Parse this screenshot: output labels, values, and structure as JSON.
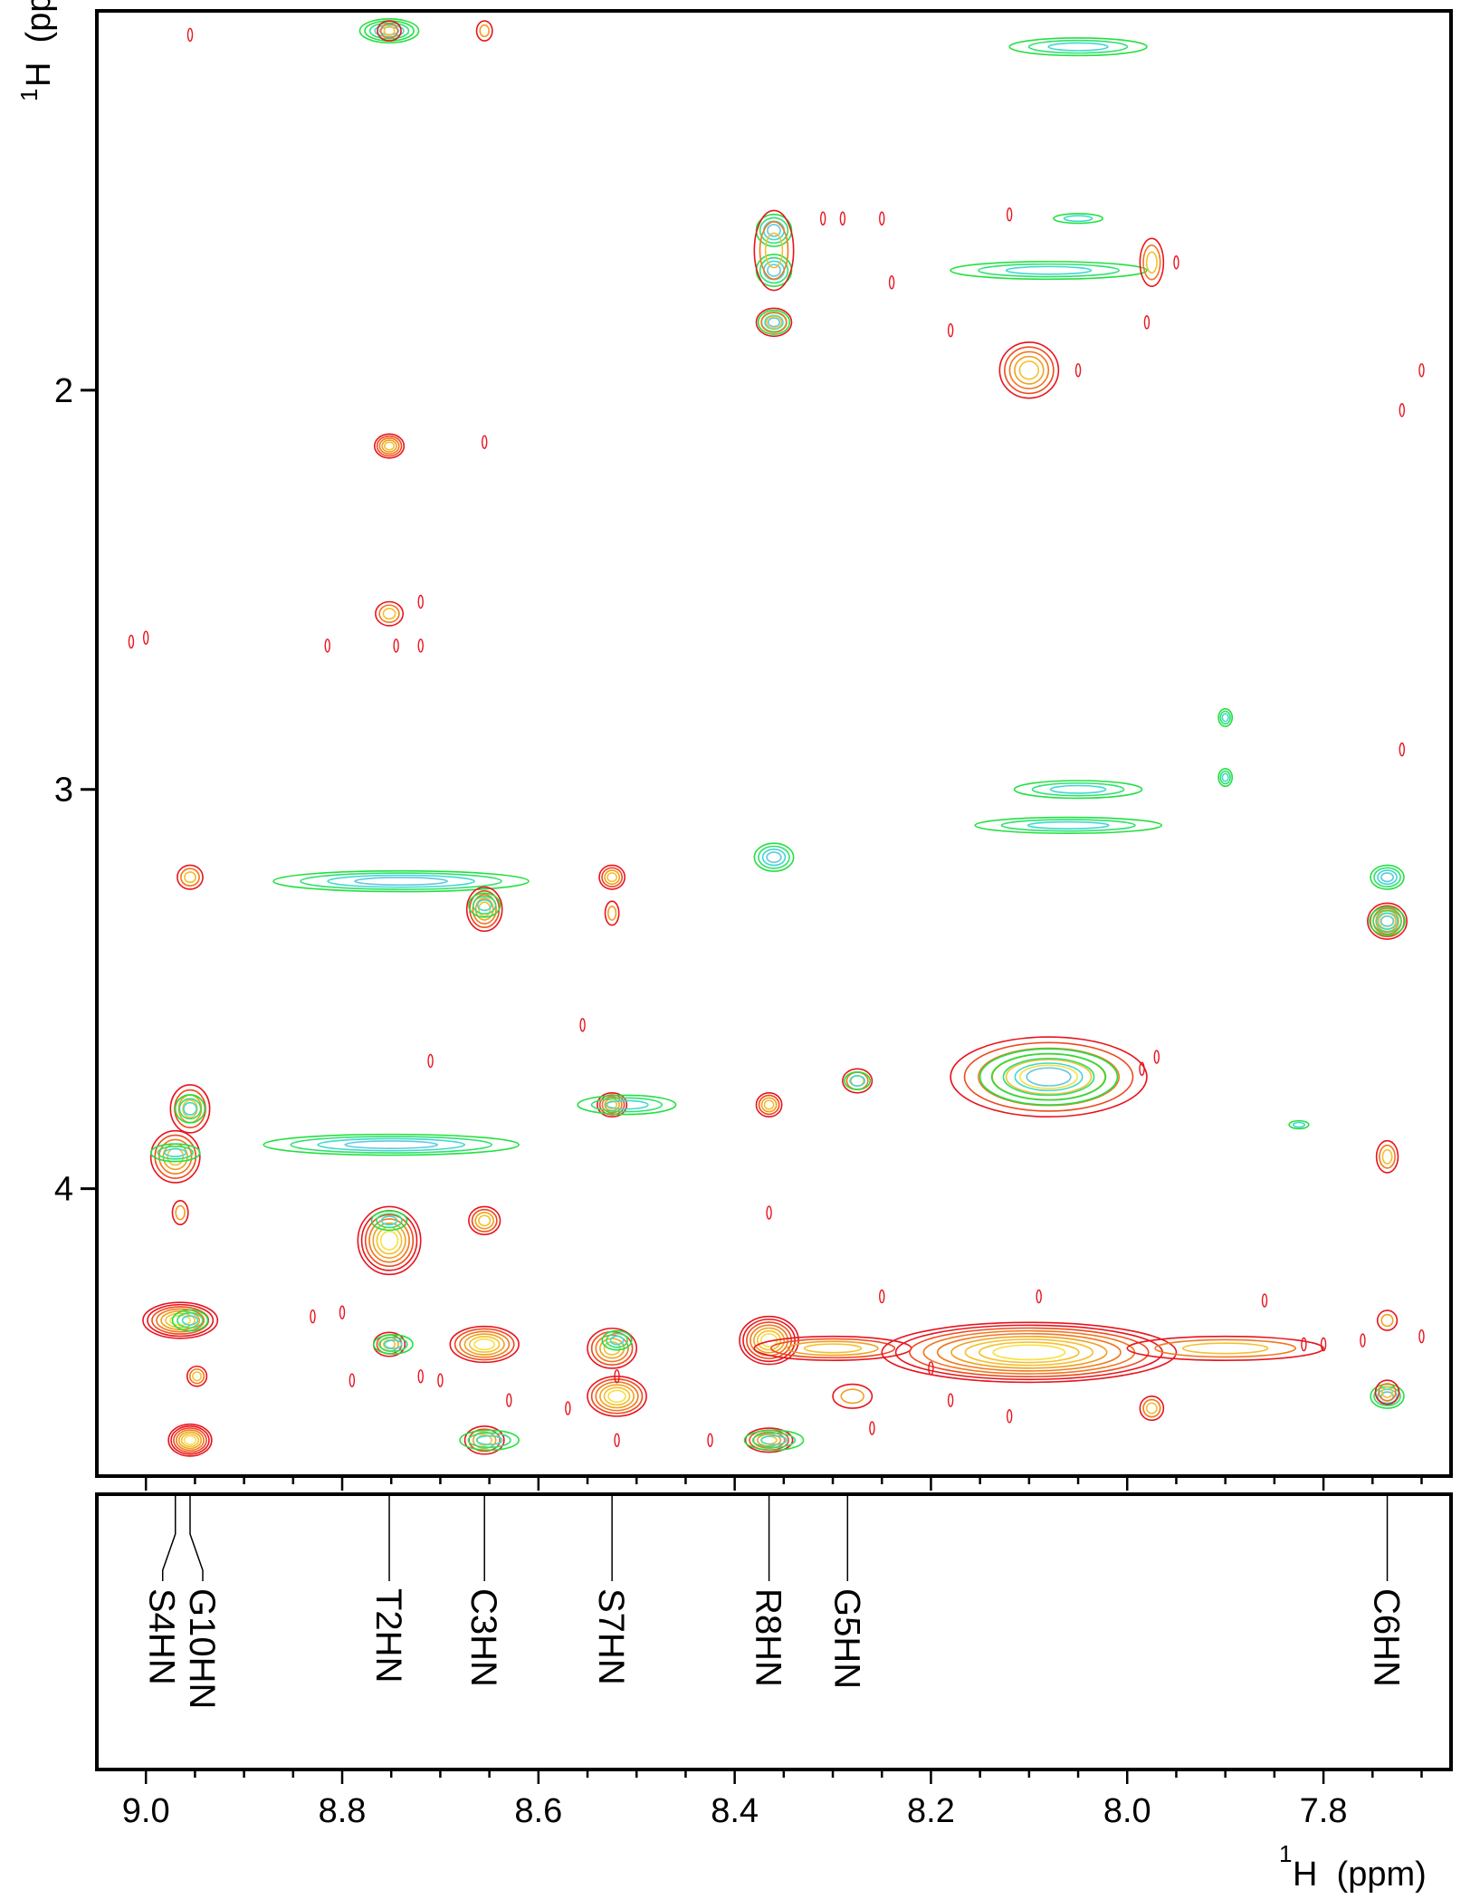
{
  "chart_data": {
    "type": "contour",
    "title": "",
    "x_axis": {
      "label_sup": "1",
      "label_main": "H  (ppm)",
      "range": [
        9.05,
        7.67
      ],
      "major_ticks": [
        9.0,
        8.8,
        8.6,
        8.4,
        8.2,
        8.0,
        7.8
      ],
      "tick_labels": [
        "9.0",
        "8.8",
        "8.6",
        "8.4",
        "8.2",
        "8.0",
        "7.8"
      ],
      "minor_step": 0.05
    },
    "y_axis": {
      "label_sup": "1",
      "label_main": "H  (ppm)",
      "range": [
        1.05,
        4.72
      ],
      "major_ticks": [
        2,
        3,
        4
      ],
      "tick_labels": [
        "2",
        "3",
        "4"
      ]
    },
    "colors": {
      "red": "#e8141e",
      "orange": "#f0a020",
      "yellow": "#f8e040",
      "green": "#22e040",
      "cyan": "#40d8d0",
      "axis": "#000000"
    },
    "assignments": [
      {
        "label": "S4HN",
        "x": 8.97
      },
      {
        "label": "G10HN",
        "x": 8.955
      },
      {
        "label": "T2HN",
        "x": 8.752
      },
      {
        "label": "C3HN",
        "x": 8.655
      },
      {
        "label": "S7HN",
        "x": 8.525
      },
      {
        "label": "R8HN",
        "x": 8.365
      },
      {
        "label": "G5HN",
        "x": 8.285
      },
      {
        "label": "C6HN",
        "x": 7.735
      }
    ],
    "peaks": [
      {
        "x": 8.752,
        "y": 1.1,
        "wx": 0.03,
        "wy": 0.03,
        "n": 5,
        "c": "green"
      },
      {
        "x": 8.752,
        "y": 1.1,
        "wx": 0.012,
        "wy": 0.025,
        "n": 3,
        "c": "red"
      },
      {
        "x": 8.655,
        "y": 1.1,
        "wx": 0.008,
        "wy": 0.025,
        "n": 2,
        "c": "red"
      },
      {
        "x": 8.05,
        "y": 1.14,
        "wx": 0.07,
        "wy": 0.022,
        "n": 3,
        "c": "green"
      },
      {
        "x": 8.36,
        "y": 1.6,
        "wx": 0.018,
        "wy": 0.04,
        "n": 4,
        "c": "green"
      },
      {
        "x": 8.36,
        "y": 1.7,
        "wx": 0.018,
        "wy": 0.04,
        "n": 4,
        "c": "green"
      },
      {
        "x": 8.36,
        "y": 1.65,
        "wx": 0.02,
        "wy": 0.1,
        "n": 3,
        "c": "red"
      },
      {
        "x": 8.36,
        "y": 1.83,
        "wx": 0.016,
        "wy": 0.03,
        "n": 4,
        "c": "green"
      },
      {
        "x": 8.36,
        "y": 1.83,
        "wx": 0.018,
        "wy": 0.035,
        "n": 3,
        "c": "red"
      },
      {
        "x": 8.05,
        "y": 1.57,
        "wx": 0.025,
        "wy": 0.012,
        "n": 2,
        "c": "green"
      },
      {
        "x": 8.08,
        "y": 1.7,
        "wx": 0.1,
        "wy": 0.022,
        "n": 3,
        "c": "green"
      },
      {
        "x": 7.975,
        "y": 1.68,
        "wx": 0.012,
        "wy": 0.06,
        "n": 3,
        "c": "red"
      },
      {
        "x": 8.1,
        "y": 1.95,
        "wx": 0.03,
        "wy": 0.07,
        "n": 5,
        "c": "red"
      },
      {
        "x": 8.752,
        "y": 2.14,
        "wx": 0.015,
        "wy": 0.03,
        "n": 5,
        "c": "red"
      },
      {
        "x": 8.752,
        "y": 2.56,
        "wx": 0.014,
        "wy": 0.03,
        "n": 3,
        "c": "red"
      },
      {
        "x": 7.9,
        "y": 2.82,
        "wx": 0.007,
        "wy": 0.022,
        "n": 3,
        "c": "green"
      },
      {
        "x": 7.9,
        "y": 2.97,
        "wx": 0.007,
        "wy": 0.022,
        "n": 3,
        "c": "green"
      },
      {
        "x": 8.05,
        "y": 3.0,
        "wx": 0.065,
        "wy": 0.022,
        "n": 3,
        "c": "green"
      },
      {
        "x": 8.06,
        "y": 3.09,
        "wx": 0.095,
        "wy": 0.02,
        "n": 3,
        "c": "green"
      },
      {
        "x": 8.36,
        "y": 3.17,
        "wx": 0.02,
        "wy": 0.035,
        "n": 4,
        "c": "green"
      },
      {
        "x": 8.955,
        "y": 3.22,
        "wx": 0.013,
        "wy": 0.03,
        "n": 3,
        "c": "red"
      },
      {
        "x": 8.525,
        "y": 3.22,
        "wx": 0.013,
        "wy": 0.03,
        "n": 4,
        "c": "red"
      },
      {
        "x": 8.525,
        "y": 3.31,
        "wx": 0.007,
        "wy": 0.03,
        "n": 2,
        "c": "red"
      },
      {
        "x": 8.74,
        "y": 3.23,
        "wx": 0.13,
        "wy": 0.026,
        "n": 4,
        "c": "green"
      },
      {
        "x": 8.655,
        "y": 3.3,
        "wx": 0.018,
        "wy": 0.055,
        "n": 5,
        "c": "red"
      },
      {
        "x": 8.655,
        "y": 3.29,
        "wx": 0.016,
        "wy": 0.03,
        "n": 3,
        "c": "green"
      },
      {
        "x": 7.735,
        "y": 3.22,
        "wx": 0.017,
        "wy": 0.03,
        "n": 4,
        "c": "green"
      },
      {
        "x": 7.735,
        "y": 3.33,
        "wx": 0.02,
        "wy": 0.045,
        "n": 6,
        "c": "red"
      },
      {
        "x": 7.735,
        "y": 3.33,
        "wx": 0.018,
        "wy": 0.035,
        "n": 4,
        "c": "green"
      },
      {
        "x": 8.08,
        "y": 3.72,
        "wx": 0.1,
        "wy": 0.1,
        "n": 6,
        "c": "red"
      },
      {
        "x": 8.08,
        "y": 3.72,
        "wx": 0.07,
        "wy": 0.07,
        "n": 5,
        "c": "green"
      },
      {
        "x": 8.275,
        "y": 3.73,
        "wx": 0.015,
        "wy": 0.03,
        "n": 3,
        "c": "red"
      },
      {
        "x": 8.275,
        "y": 3.73,
        "wx": 0.013,
        "wy": 0.022,
        "n": 2,
        "c": "green"
      },
      {
        "x": 8.955,
        "y": 3.8,
        "wx": 0.02,
        "wy": 0.06,
        "n": 4,
        "c": "red"
      },
      {
        "x": 8.955,
        "y": 3.8,
        "wx": 0.015,
        "wy": 0.035,
        "n": 3,
        "c": "green"
      },
      {
        "x": 8.97,
        "y": 3.92,
        "wx": 0.025,
        "wy": 0.065,
        "n": 5,
        "c": "red"
      },
      {
        "x": 8.97,
        "y": 3.91,
        "wx": 0.025,
        "wy": 0.022,
        "n": 3,
        "c": "green"
      },
      {
        "x": 8.525,
        "y": 3.79,
        "wx": 0.015,
        "wy": 0.03,
        "n": 5,
        "c": "red"
      },
      {
        "x": 8.51,
        "y": 3.79,
        "wx": 0.05,
        "wy": 0.024,
        "n": 3,
        "c": "green"
      },
      {
        "x": 8.365,
        "y": 3.79,
        "wx": 0.013,
        "wy": 0.03,
        "n": 4,
        "c": "red"
      },
      {
        "x": 8.75,
        "y": 3.89,
        "wx": 0.13,
        "wy": 0.026,
        "n": 4,
        "c": "green"
      },
      {
        "x": 7.735,
        "y": 3.92,
        "wx": 0.011,
        "wy": 0.04,
        "n": 3,
        "c": "red"
      },
      {
        "x": 7.825,
        "y": 3.84,
        "wx": 0.01,
        "wy": 0.01,
        "n": 2,
        "c": "green"
      },
      {
        "x": 8.965,
        "y": 4.06,
        "wx": 0.008,
        "wy": 0.03,
        "n": 2,
        "c": "red"
      },
      {
        "x": 8.752,
        "y": 4.13,
        "wx": 0.032,
        "wy": 0.085,
        "n": 7,
        "c": "red"
      },
      {
        "x": 8.752,
        "y": 4.08,
        "wx": 0.018,
        "wy": 0.024,
        "n": 3,
        "c": "green"
      },
      {
        "x": 8.655,
        "y": 4.08,
        "wx": 0.016,
        "wy": 0.035,
        "n": 4,
        "c": "red"
      },
      {
        "x": 8.965,
        "y": 4.33,
        "wx": 0.038,
        "wy": 0.045,
        "n": 7,
        "c": "red"
      },
      {
        "x": 8.955,
        "y": 4.33,
        "wx": 0.018,
        "wy": 0.026,
        "n": 3,
        "c": "green"
      },
      {
        "x": 8.948,
        "y": 4.47,
        "wx": 0.01,
        "wy": 0.025,
        "n": 3,
        "c": "red"
      },
      {
        "x": 8.752,
        "y": 4.39,
        "wx": 0.016,
        "wy": 0.03,
        "n": 4,
        "c": "red"
      },
      {
        "x": 8.748,
        "y": 4.39,
        "wx": 0.02,
        "wy": 0.024,
        "n": 3,
        "c": "green"
      },
      {
        "x": 8.655,
        "y": 4.39,
        "wx": 0.035,
        "wy": 0.045,
        "n": 6,
        "c": "red"
      },
      {
        "x": 8.525,
        "y": 4.4,
        "wx": 0.025,
        "wy": 0.05,
        "n": 5,
        "c": "red"
      },
      {
        "x": 8.52,
        "y": 4.38,
        "wx": 0.015,
        "wy": 0.024,
        "n": 3,
        "c": "green"
      },
      {
        "x": 8.52,
        "y": 4.52,
        "wx": 0.03,
        "wy": 0.05,
        "n": 6,
        "c": "red"
      },
      {
        "x": 8.365,
        "y": 4.38,
        "wx": 0.03,
        "wy": 0.06,
        "n": 7,
        "c": "red"
      },
      {
        "x": 8.3,
        "y": 4.4,
        "wx": 0.08,
        "wy": 0.03,
        "n": 4,
        "c": "red"
      },
      {
        "x": 8.1,
        "y": 4.41,
        "wx": 0.15,
        "wy": 0.075,
        "n": 9,
        "c": "red"
      },
      {
        "x": 7.9,
        "y": 4.4,
        "wx": 0.1,
        "wy": 0.03,
        "n": 3,
        "c": "red"
      },
      {
        "x": 8.28,
        "y": 4.52,
        "wx": 0.02,
        "wy": 0.03,
        "n": 2,
        "c": "red"
      },
      {
        "x": 7.975,
        "y": 4.55,
        "wx": 0.012,
        "wy": 0.03,
        "n": 3,
        "c": "red"
      },
      {
        "x": 7.735,
        "y": 4.52,
        "wx": 0.017,
        "wy": 0.03,
        "n": 4,
        "c": "green"
      },
      {
        "x": 7.735,
        "y": 4.51,
        "wx": 0.012,
        "wy": 0.03,
        "n": 3,
        "c": "red"
      },
      {
        "x": 7.735,
        "y": 4.33,
        "wx": 0.01,
        "wy": 0.025,
        "n": 2,
        "c": "red"
      },
      {
        "x": 8.955,
        "y": 4.63,
        "wx": 0.022,
        "wy": 0.04,
        "n": 7,
        "c": "red"
      },
      {
        "x": 8.655,
        "y": 4.63,
        "wx": 0.02,
        "wy": 0.035,
        "n": 4,
        "c": "red"
      },
      {
        "x": 8.65,
        "y": 4.63,
        "wx": 0.03,
        "wy": 0.025,
        "n": 3,
        "c": "green"
      },
      {
        "x": 8.365,
        "y": 4.63,
        "wx": 0.024,
        "wy": 0.03,
        "n": 5,
        "c": "red"
      },
      {
        "x": 8.36,
        "y": 4.63,
        "wx": 0.03,
        "wy": 0.025,
        "n": 3,
        "c": "green"
      }
    ],
    "specks": [
      [
        8.955,
        1.11
      ],
      [
        9.015,
        2.63
      ],
      [
        9.0,
        2.62
      ],
      [
        8.815,
        2.64
      ],
      [
        8.745,
        2.64
      ],
      [
        8.72,
        2.64
      ],
      [
        8.72,
        2.53
      ],
      [
        8.655,
        2.13
      ],
      [
        8.18,
        1.85
      ],
      [
        7.98,
        1.83
      ],
      [
        8.24,
        1.73
      ],
      [
        8.31,
        1.57
      ],
      [
        8.29,
        1.57
      ],
      [
        8.25,
        1.57
      ],
      [
        8.12,
        1.56
      ],
      [
        8.05,
        1.95
      ],
      [
        7.95,
        1.68
      ],
      [
        7.72,
        2.05
      ],
      [
        7.7,
        1.95
      ],
      [
        7.72,
        2.9
      ],
      [
        8.71,
        3.68
      ],
      [
        8.555,
        3.59
      ],
      [
        7.97,
        3.67
      ],
      [
        7.985,
        3.7
      ],
      [
        8.365,
        4.06
      ],
      [
        8.09,
        4.27
      ],
      [
        8.63,
        4.53
      ],
      [
        8.57,
        4.55
      ],
      [
        8.52,
        4.63
      ],
      [
        8.425,
        4.63
      ],
      [
        8.26,
        4.6
      ],
      [
        8.18,
        4.53
      ],
      [
        8.12,
        4.57
      ],
      [
        7.7,
        4.37
      ],
      [
        7.76,
        4.38
      ],
      [
        8.83,
        4.32
      ],
      [
        8.8,
        4.31
      ],
      [
        8.79,
        4.48
      ],
      [
        8.72,
        4.47
      ],
      [
        8.7,
        4.48
      ],
      [
        8.52,
        4.47
      ],
      [
        8.2,
        4.45
      ],
      [
        8.25,
        4.27
      ],
      [
        7.86,
        4.28
      ],
      [
        7.8,
        4.39
      ],
      [
        7.82,
        4.39
      ]
    ]
  }
}
